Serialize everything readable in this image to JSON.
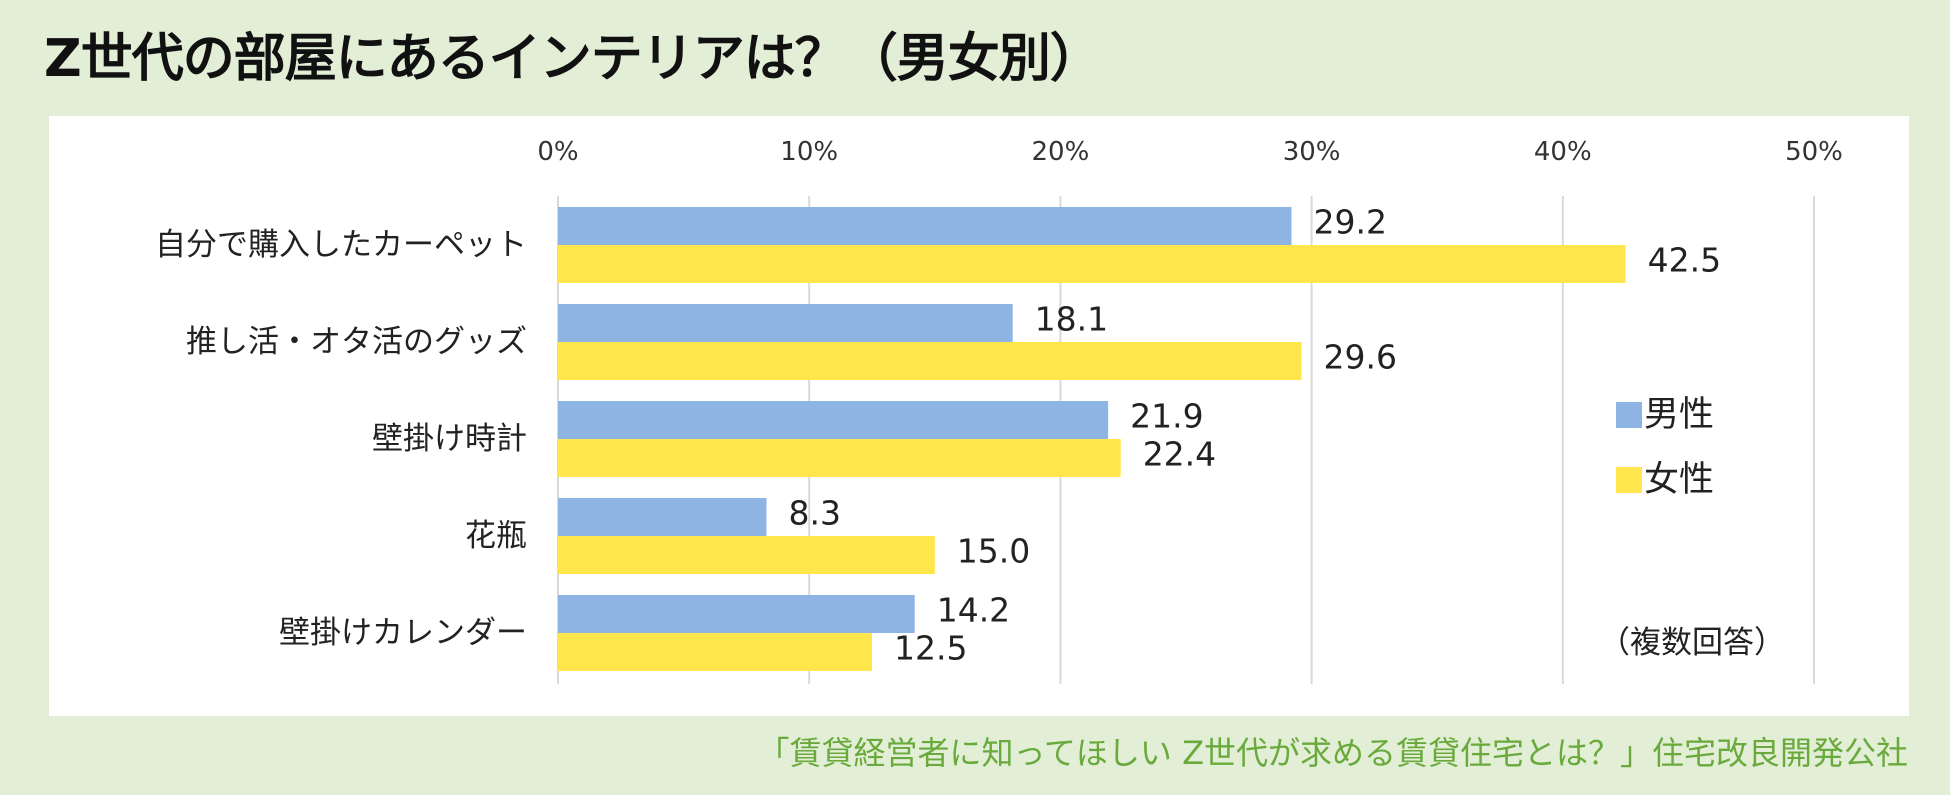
{
  "header": {
    "title": "Z世代の部屋にあるインテリアは？（男女別）"
  },
  "footer": {
    "source": "「賃貸経営者に知ってほしい Z世代が求める賃貸住宅とは？」住宅改良開発公社"
  },
  "chart_data": {
    "type": "bar",
    "orientation": "horizontal",
    "title": "Z世代の部屋にあるインテリアは？（男女別）",
    "categories": [
      "自分で購入したカーペット",
      "推し活・オタ活のグッズ",
      "壁掛け時計",
      "花瓶",
      "壁掛けカレンダー"
    ],
    "series": [
      {
        "name": "男性",
        "values": [
          29.2,
          18.1,
          21.9,
          8.3,
          14.2
        ],
        "color": "#8eb4e3"
      },
      {
        "name": "女性",
        "values": [
          42.5,
          29.6,
          22.4,
          15.0,
          12.5
        ],
        "color": "#ffe64b"
      }
    ],
    "value_labels": [
      [
        "29.2",
        "18.1",
        "21.9",
        "8.3",
        "14.2"
      ],
      [
        "42.5",
        "29.6",
        "22.4",
        "15.0",
        "12.5"
      ]
    ],
    "xlim": [
      0,
      50
    ],
    "ticks": [
      0,
      10,
      20,
      30,
      40,
      50
    ],
    "tick_labels": [
      "0%",
      "10%",
      "20%",
      "30%",
      "40%",
      "50%"
    ],
    "axis_position": "top",
    "grid": true,
    "gridline_color": "#d9d9d9",
    "legend_position": "right",
    "note": "（複数回答）"
  }
}
